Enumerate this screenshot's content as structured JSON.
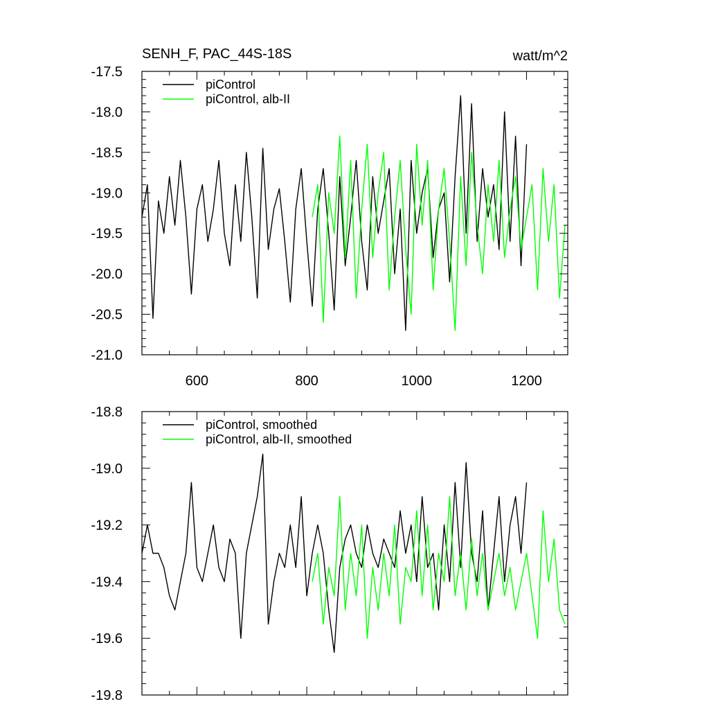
{
  "chart_data": [
    {
      "type": "line",
      "title": "SENH_F, PAC_44S-18S",
      "units": "watt/m^2",
      "xlim": [
        500,
        1275
      ],
      "ylim": [
        -21.0,
        -17.5
      ],
      "xticks": [
        600,
        800,
        1000,
        1200
      ],
      "xtick_labels": [
        "600",
        "800",
        "1000",
        "1200"
      ],
      "yticks": [
        -21.0,
        -20.5,
        -20.0,
        -19.5,
        -19.0,
        -18.5,
        -18.0,
        -17.5
      ],
      "ytick_labels": [
        "-21.0",
        "-20.5",
        "-20.0",
        "-19.5",
        "-19.0",
        "-18.5",
        "-18.0",
        "-17.5"
      ],
      "grid": false,
      "legend_position": "top-left",
      "series": [
        {
          "name": "piControl",
          "color": "#000000",
          "x": [
            500,
            510,
            520,
            530,
            540,
            550,
            560,
            570,
            580,
            590,
            600,
            610,
            620,
            630,
            640,
            650,
            660,
            670,
            680,
            690,
            700,
            710,
            720,
            730,
            740,
            750,
            760,
            770,
            780,
            790,
            800,
            810,
            820,
            830,
            840,
            850,
            860,
            870,
            880,
            890,
            900,
            910,
            920,
            930,
            940,
            950,
            960,
            970,
            980,
            990,
            1000,
            1010,
            1020,
            1030,
            1040,
            1050,
            1060,
            1070,
            1080,
            1090,
            1100,
            1110,
            1120,
            1130,
            1140,
            1150,
            1160,
            1170,
            1180,
            1190,
            1200
          ],
          "y": [
            -19.3,
            -18.9,
            -20.55,
            -19.1,
            -19.5,
            -18.8,
            -19.4,
            -18.6,
            -19.3,
            -20.25,
            -19.2,
            -18.9,
            -19.6,
            -19.2,
            -18.6,
            -19.5,
            -19.9,
            -18.9,
            -19.6,
            -18.5,
            -19.3,
            -20.3,
            -18.45,
            -19.7,
            -19.2,
            -18.95,
            -19.6,
            -20.35,
            -19.2,
            -18.7,
            -19.6,
            -20.4,
            -19.2,
            -18.7,
            -19.5,
            -20.45,
            -18.8,
            -19.9,
            -19.3,
            -18.6,
            -19.6,
            -20.2,
            -18.8,
            -19.5,
            -19.1,
            -18.7,
            -20.0,
            -19.2,
            -20.7,
            -18.6,
            -19.5,
            -19.0,
            -18.7,
            -19.8,
            -19.2,
            -19.0,
            -20.1,
            -18.8,
            -17.8,
            -19.5,
            -17.9,
            -19.6,
            -18.7,
            -19.3,
            -18.9,
            -19.7,
            -18.0,
            -19.6,
            -18.3,
            -19.9,
            -18.4
          ]
        },
        {
          "name": "piControl, alb-II",
          "color": "#00ff00",
          "x": [
            810,
            820,
            830,
            840,
            850,
            860,
            870,
            880,
            890,
            900,
            910,
            920,
            930,
            940,
            950,
            960,
            970,
            980,
            990,
            1000,
            1010,
            1020,
            1030,
            1040,
            1050,
            1060,
            1070,
            1080,
            1090,
            1100,
            1110,
            1120,
            1130,
            1140,
            1150,
            1160,
            1170,
            1180,
            1190,
            1200,
            1210,
            1220,
            1230,
            1240,
            1250,
            1260,
            1270
          ],
          "y": [
            -19.3,
            -18.9,
            -20.6,
            -19.0,
            -19.5,
            -18.3,
            -19.8,
            -18.6,
            -20.3,
            -19.2,
            -18.4,
            -19.8,
            -19.0,
            -18.5,
            -20.2,
            -19.3,
            -18.6,
            -19.7,
            -20.5,
            -18.4,
            -19.4,
            -18.6,
            -20.2,
            -19.2,
            -18.7,
            -19.6,
            -20.7,
            -18.8,
            -19.9,
            -18.5,
            -19.4,
            -20.0,
            -18.9,
            -19.6,
            -18.6,
            -19.8,
            -19.2,
            -18.8,
            -19.7,
            -19.3,
            -18.9,
            -20.2,
            -18.7,
            -19.6,
            -18.9,
            -20.3,
            -19.4
          ]
        }
      ]
    },
    {
      "type": "line",
      "xlim": [
        500,
        1275
      ],
      "ylim": [
        -19.8,
        -18.8
      ],
      "xticks": [
        600,
        800,
        1000,
        1200
      ],
      "yticks": [
        -19.8,
        -19.6,
        -19.4,
        -19.2,
        -19.0,
        -18.8
      ],
      "ytick_labels": [
        "-19.8",
        "-19.6",
        "-19.4",
        "-19.2",
        "-19.0",
        "-18.8"
      ],
      "grid": false,
      "legend_position": "top-left",
      "series": [
        {
          "name": "piControl, smoothed",
          "color": "#000000",
          "x": [
            500,
            510,
            520,
            530,
            540,
            550,
            560,
            570,
            580,
            590,
            600,
            610,
            620,
            630,
            640,
            650,
            660,
            670,
            680,
            690,
            700,
            710,
            720,
            730,
            740,
            750,
            760,
            770,
            780,
            790,
            800,
            810,
            820,
            830,
            840,
            850,
            860,
            870,
            880,
            890,
            900,
            910,
            920,
            930,
            940,
            950,
            960,
            970,
            980,
            990,
            1000,
            1010,
            1020,
            1030,
            1040,
            1050,
            1060,
            1070,
            1080,
            1090,
            1100,
            1110,
            1120,
            1130,
            1140,
            1150,
            1160,
            1170,
            1180,
            1190,
            1200
          ],
          "y": [
            -19.3,
            -19.2,
            -19.3,
            -19.3,
            -19.35,
            -19.45,
            -19.5,
            -19.4,
            -19.3,
            -19.05,
            -19.35,
            -19.4,
            -19.3,
            -19.2,
            -19.35,
            -19.4,
            -19.25,
            -19.3,
            -19.6,
            -19.3,
            -19.2,
            -19.1,
            -18.95,
            -19.55,
            -19.4,
            -19.3,
            -19.35,
            -19.2,
            -19.35,
            -19.1,
            -19.45,
            -19.3,
            -19.2,
            -19.3,
            -19.5,
            -19.65,
            -19.35,
            -19.25,
            -19.2,
            -19.3,
            -19.35,
            -19.2,
            -19.3,
            -19.35,
            -19.25,
            -19.3,
            -19.35,
            -19.15,
            -19.3,
            -19.2,
            -19.4,
            -19.1,
            -19.35,
            -19.3,
            -19.5,
            -19.2,
            -19.4,
            -19.05,
            -19.35,
            -18.98,
            -19.3,
            -19.4,
            -19.15,
            -19.5,
            -19.3,
            -19.1,
            -19.4,
            -19.2,
            -19.1,
            -19.3,
            -19.05
          ]
        },
        {
          "name": "piControl, alb-II, smoothed",
          "color": "#00ff00",
          "x": [
            810,
            820,
            830,
            840,
            850,
            860,
            870,
            880,
            890,
            900,
            910,
            920,
            930,
            940,
            950,
            960,
            970,
            980,
            990,
            1000,
            1010,
            1020,
            1030,
            1040,
            1050,
            1060,
            1070,
            1080,
            1090,
            1100,
            1110,
            1120,
            1130,
            1140,
            1150,
            1160,
            1170,
            1180,
            1190,
            1200,
            1210,
            1220,
            1230,
            1240,
            1250,
            1260,
            1270
          ],
          "y": [
            -19.4,
            -19.3,
            -19.55,
            -19.35,
            -19.45,
            -19.1,
            -19.5,
            -19.3,
            -19.45,
            -19.2,
            -19.6,
            -19.35,
            -19.5,
            -19.3,
            -19.45,
            -19.2,
            -19.55,
            -19.35,
            -19.4,
            -19.15,
            -19.45,
            -19.2,
            -19.5,
            -19.3,
            -19.4,
            -19.1,
            -19.45,
            -19.3,
            -19.5,
            -19.25,
            -19.45,
            -19.3,
            -19.5,
            -19.4,
            -19.3,
            -19.45,
            -19.35,
            -19.5,
            -19.4,
            -19.3,
            -19.45,
            -19.6,
            -19.15,
            -19.4,
            -19.25,
            -19.5,
            -19.55
          ]
        }
      ]
    }
  ]
}
